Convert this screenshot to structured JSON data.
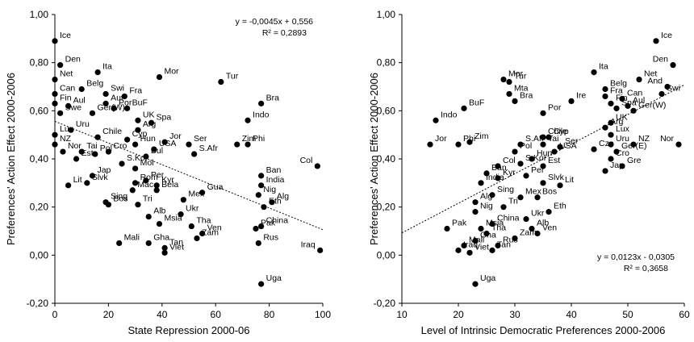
{
  "chart_data": [
    {
      "type": "scatter",
      "xlabel": "State Repression 2000-06",
      "ylabel": "Preferences' Action Effect 2000-2006",
      "xlim": [
        0,
        100
      ],
      "ylim": [
        -0.2,
        1.0
      ],
      "x_ticks": [
        "0",
        "20",
        "40",
        "60",
        "80",
        "100"
      ],
      "y_ticks": [
        "-0,20",
        "0,00",
        "0,20",
        "0,40",
        "0,60",
        "0,80",
        "1,00"
      ],
      "trendline": {
        "slope": -0.0045,
        "intercept": 0.556,
        "equation": "y = -0,0045x + 0,556",
        "r2": "R² = 0,2893"
      },
      "points": [
        {
          "label": "Ice",
          "x": 0,
          "y": 0.89
        },
        {
          "label": "Den",
          "x": 2,
          "y": 0.79
        },
        {
          "label": "Net",
          "x": 0,
          "y": 0.73
        },
        {
          "label": "Ita",
          "x": 16,
          "y": 0.76
        },
        {
          "label": "Mor",
          "x": 39,
          "y": 0.74
        },
        {
          "label": "Tur",
          "x": 62,
          "y": 0.72
        },
        {
          "label": "Can",
          "x": 0,
          "y": 0.67
        },
        {
          "label": "Belg",
          "x": 10,
          "y": 0.69
        },
        {
          "label": "Swi",
          "x": 19,
          "y": 0.67
        },
        {
          "label": "Fra",
          "x": 26,
          "y": 0.66
        },
        {
          "label": "Fin",
          "x": 0,
          "y": 0.63
        },
        {
          "label": "Aul",
          "x": 5,
          "y": 0.62
        },
        {
          "label": "Aut",
          "x": 19,
          "y": 0.63
        },
        {
          "label": "BuF",
          "x": 27,
          "y": 0.61
        },
        {
          "label": "Bra",
          "x": 77,
          "y": 0.63
        },
        {
          "label": "Swe",
          "x": 2,
          "y": 0.59
        },
        {
          "label": "Ger(W)",
          "x": 14,
          "y": 0.59
        },
        {
          "label": "Por",
          "x": 22,
          "y": 0.61
        },
        {
          "label": "UK",
          "x": 31,
          "y": 0.56
        },
        {
          "label": "Indo",
          "x": 72,
          "y": 0.56
        },
        {
          "label": "Uru",
          "x": 6,
          "y": 0.52
        },
        {
          "label": "Spa",
          "x": 36,
          "y": 0.55
        },
        {
          "label": "Lux",
          "x": 0,
          "y": 0.5
        },
        {
          "label": "Chile",
          "x": 16,
          "y": 0.49
        },
        {
          "label": "Cyp",
          "x": 27,
          "y": 0.48
        },
        {
          "label": "Arg",
          "x": 31,
          "y": 0.52
        },
        {
          "label": "Jor",
          "x": 41,
          "y": 0.47
        },
        {
          "label": "Ser",
          "x": 50,
          "y": 0.46
        },
        {
          "label": "NZ",
          "x": 0,
          "y": 0.46
        },
        {
          "label": "Hun",
          "x": 30,
          "y": 0.46
        },
        {
          "label": "Zim",
          "x": 68,
          "y": 0.46
        },
        {
          "label": "Phi",
          "x": 72,
          "y": 0.46
        },
        {
          "label": "Nor",
          "x": 3,
          "y": 0.43
        },
        {
          "label": "Tai",
          "x": 10,
          "y": 0.43
        },
        {
          "label": "Pol",
          "x": 15,
          "y": 0.42
        },
        {
          "label": "Cro",
          "x": 20,
          "y": 0.43
        },
        {
          "label": "USA",
          "x": 37,
          "y": 0.44
        },
        {
          "label": "S.Afr",
          "x": 52,
          "y": 0.42
        },
        {
          "label": "Bul",
          "x": 34,
          "y": 0.41
        },
        {
          "label": "Est",
          "x": 8,
          "y": 0.4
        },
        {
          "label": "S.Kor",
          "x": 25,
          "y": 0.38
        },
        {
          "label": "Col",
          "x": 98,
          "y": 0.37
        },
        {
          "label": "Mol",
          "x": 30,
          "y": 0.36
        },
        {
          "label": "Jap",
          "x": 14,
          "y": 0.33
        },
        {
          "label": "Ban",
          "x": 77,
          "y": 0.33
        },
        {
          "label": "Per",
          "x": 34,
          "y": 0.31
        },
        {
          "label": "Rom",
          "x": 30,
          "y": 0.3
        },
        {
          "label": "Lit",
          "x": 5,
          "y": 0.29
        },
        {
          "label": "Slvk",
          "x": 12,
          "y": 0.3
        },
        {
          "label": "Kyr",
          "x": 38,
          "y": 0.29
        },
        {
          "label": "India",
          "x": 77,
          "y": 0.29
        },
        {
          "label": "Gua",
          "x": 55,
          "y": 0.26
        },
        {
          "label": "Mac",
          "x": 29,
          "y": 0.27
        },
        {
          "label": "Bela",
          "x": 38,
          "y": 0.27
        },
        {
          "label": "Nig",
          "x": 76,
          "y": 0.25
        },
        {
          "label": "Sing",
          "x": 19,
          "y": 0.22
        },
        {
          "label": "Mex",
          "x": 48,
          "y": 0.23
        },
        {
          "label": "Alg",
          "x": 81,
          "y": 0.22
        },
        {
          "label": "Tri",
          "x": 31,
          "y": 0.21
        },
        {
          "label": "Bos",
          "x": 20,
          "y": 0.21
        },
        {
          "label": "Eth",
          "x": 78,
          "y": 0.2
        },
        {
          "label": "Ukr",
          "x": 47,
          "y": 0.17
        },
        {
          "label": "Alb",
          "x": 35,
          "y": 0.16
        },
        {
          "label": "Msia",
          "x": 39,
          "y": 0.13
        },
        {
          "label": "Tha",
          "x": 51,
          "y": 0.12
        },
        {
          "label": "China",
          "x": 77,
          "y": 0.12
        },
        {
          "label": "Pak",
          "x": 75,
          "y": 0.11
        },
        {
          "label": "Ven",
          "x": 55,
          "y": 0.09
        },
        {
          "label": "Tan",
          "x": 41,
          "y": 0.03
        },
        {
          "label": "Zam",
          "x": 53,
          "y": 0.07
        },
        {
          "label": "Mali",
          "x": 24,
          "y": 0.05
        },
        {
          "label": "Gha",
          "x": 35,
          "y": 0.05
        },
        {
          "label": "Rus",
          "x": 76,
          "y": 0.05
        },
        {
          "label": "Viet",
          "x": 41,
          "y": 0.01
        },
        {
          "label": "Iraq",
          "x": 99,
          "y": 0.02
        },
        {
          "label": "Uga",
          "x": 77,
          "y": -0.12
        }
      ]
    },
    {
      "type": "scatter",
      "xlabel": "Level of Intrinsic Democratic Preferences 2000-2006",
      "ylabel": "Preferences' Action Effect 2000-2006",
      "xlim": [
        10,
        60
      ],
      "ylim": [
        -0.2,
        1.0
      ],
      "x_ticks": [
        "10",
        "20",
        "30",
        "40",
        "50",
        "60"
      ],
      "y_ticks": [
        "-0,20",
        "0,00",
        "0,20",
        "0,40",
        "0,60",
        "0,80",
        "1,00"
      ],
      "trendline": {
        "slope": 0.0123,
        "intercept": -0.0305,
        "equation": "y = 0,0123x - 0,0305",
        "r2": "R² = 0,3658"
      },
      "points": [
        {
          "label": "Ice",
          "x": 55,
          "y": 0.89
        },
        {
          "label": "Den",
          "x": 58,
          "y": 0.79
        },
        {
          "label": "Ita",
          "x": 44,
          "y": 0.76
        },
        {
          "label": "Mor",
          "x": 28,
          "y": 0.73
        },
        {
          "label": "Tur",
          "x": 29,
          "y": 0.72
        },
        {
          "label": "Net",
          "x": 52,
          "y": 0.73
        },
        {
          "label": "Belg",
          "x": 46,
          "y": 0.69
        },
        {
          "label": "And",
          "x": 57,
          "y": 0.7
        },
        {
          "label": "Mta",
          "x": 29,
          "y": 0.67
        },
        {
          "label": "Bra",
          "x": 30,
          "y": 0.64
        },
        {
          "label": "Ire",
          "x": 40,
          "y": 0.64
        },
        {
          "label": "Fra",
          "x": 46,
          "y": 0.66
        },
        {
          "label": "Can",
          "x": 49,
          "y": 0.65
        },
        {
          "label": "Swi",
          "x": 56,
          "y": 0.67
        },
        {
          "label": "Aul",
          "x": 50,
          "y": 0.62
        },
        {
          "label": "Fin",
          "x": 47,
          "y": 0.63
        },
        {
          "label": "BuF",
          "x": 21,
          "y": 0.61
        },
        {
          "label": "Spa",
          "x": 48,
          "y": 0.61
        },
        {
          "label": "Ger(W)",
          "x": 51,
          "y": 0.6
        },
        {
          "label": "Por",
          "x": 35,
          "y": 0.59
        },
        {
          "label": "Indo",
          "x": 16,
          "y": 0.56
        },
        {
          "label": "UK",
          "x": 47,
          "y": 0.55
        },
        {
          "label": "Arg",
          "x": 46,
          "y": 0.53
        },
        {
          "label": "Lux",
          "x": 47,
          "y": 0.5
        },
        {
          "label": "Chile",
          "x": 35,
          "y": 0.49
        },
        {
          "label": "Cyp",
          "x": 36,
          "y": 0.49
        },
        {
          "label": "Zim",
          "x": 22,
          "y": 0.47
        },
        {
          "label": "S.Afr",
          "x": 31,
          "y": 0.46
        },
        {
          "label": "Tai",
          "x": 35,
          "y": 0.46
        },
        {
          "label": "Ser",
          "x": 38,
          "y": 0.45
        },
        {
          "label": "Uru",
          "x": 47,
          "y": 0.46
        },
        {
          "label": "NZ",
          "x": 51,
          "y": 0.46
        },
        {
          "label": "Nor",
          "x": 59,
          "y": 0.46
        },
        {
          "label": "Jor",
          "x": 15,
          "y": 0.46
        },
        {
          "label": "Phi",
          "x": 20,
          "y": 0.46
        },
        {
          "label": "Pol",
          "x": 30,
          "y": 0.43
        },
        {
          "label": "USA",
          "x": 37,
          "y": 0.43
        },
        {
          "label": "Cze",
          "x": 44,
          "y": 0.44
        },
        {
          "label": "Ger(E)",
          "x": 48,
          "y": 0.43
        },
        {
          "label": "Hun",
          "x": 33,
          "y": 0.4
        },
        {
          "label": "S.Kor",
          "x": 31,
          "y": 0.38
        },
        {
          "label": "Est",
          "x": 35,
          "y": 0.37
        },
        {
          "label": "Col",
          "x": 27,
          "y": 0.37
        },
        {
          "label": "Cro",
          "x": 47,
          "y": 0.4
        },
        {
          "label": "Gre",
          "x": 49,
          "y": 0.37
        },
        {
          "label": "Ban",
          "x": 25,
          "y": 0.34
        },
        {
          "label": "Kyr",
          "x": 27,
          "y": 0.32
        },
        {
          "label": "Per",
          "x": 32,
          "y": 0.33
        },
        {
          "label": "Jap",
          "x": 46,
          "y": 0.35
        },
        {
          "label": "India",
          "x": 24,
          "y": 0.3
        },
        {
          "label": "Slvk",
          "x": 35,
          "y": 0.3
        },
        {
          "label": "Lit",
          "x": 38,
          "y": 0.29
        },
        {
          "label": "Sing",
          "x": 26,
          "y": 0.25
        },
        {
          "label": "Mex",
          "x": 31,
          "y": 0.24
        },
        {
          "label": "Bos",
          "x": 34,
          "y": 0.24
        },
        {
          "label": "Alg",
          "x": 23,
          "y": 0.22
        },
        {
          "label": "Tri",
          "x": 28,
          "y": 0.2
        },
        {
          "label": "Eth",
          "x": 36,
          "y": 0.18
        },
        {
          "label": "Nig",
          "x": 23,
          "y": 0.18
        },
        {
          "label": "Ukr",
          "x": 32,
          "y": 0.15
        },
        {
          "label": "China",
          "x": 26,
          "y": 0.13
        },
        {
          "label": "Msia",
          "x": 24,
          "y": 0.11
        },
        {
          "label": "Alb",
          "x": 33,
          "y": 0.11
        },
        {
          "label": "Pak",
          "x": 18,
          "y": 0.11
        },
        {
          "label": "Tha",
          "x": 25,
          "y": 0.09
        },
        {
          "label": "Ven",
          "x": 34,
          "y": 0.09
        },
        {
          "label": "Zam",
          "x": 30,
          "y": 0.07
        },
        {
          "label": "Gha",
          "x": 23,
          "y": 0.06
        },
        {
          "label": "Mali",
          "x": 21,
          "y": 0.04
        },
        {
          "label": "Rus",
          "x": 27,
          "y": 0.04
        },
        {
          "label": "Iraq",
          "x": 20,
          "y": 0.02
        },
        {
          "label": "Viet",
          "x": 22,
          "y": 0.01
        },
        {
          "label": "Tan",
          "x": 26,
          "y": 0.02
        },
        {
          "label": "Uga",
          "x": 23,
          "y": -0.12
        }
      ]
    }
  ]
}
